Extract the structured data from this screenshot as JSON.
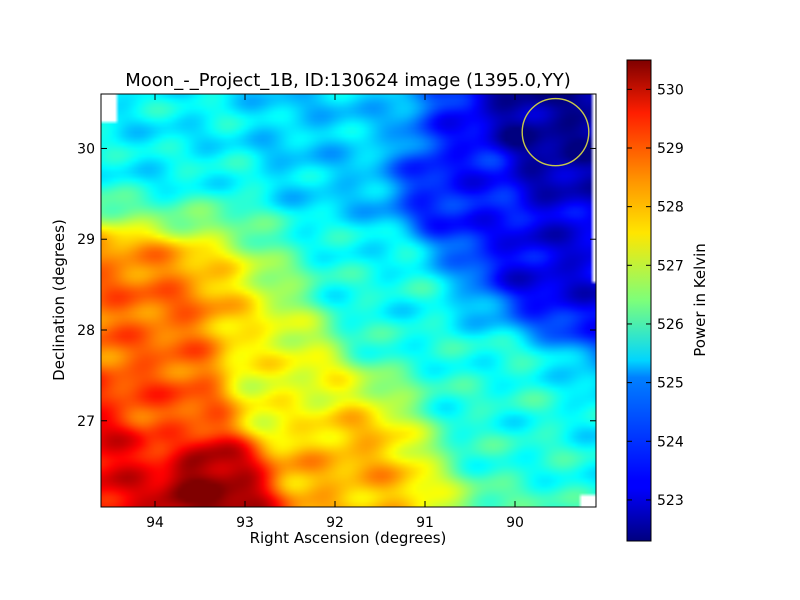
{
  "chart_data": {
    "type": "heatmap",
    "title": "Moon_-_Project_1B, ID:130624 image (1395.0,YY)",
    "xlabel": "Right Ascension (degrees)",
    "ylabel": "Declination (degrees)",
    "xlim": [
      94.6,
      89.1
    ],
    "ylim": [
      26.05,
      30.6
    ],
    "x_ticks": [
      94,
      93,
      92,
      91,
      90
    ],
    "y_ticks": [
      27,
      28,
      29,
      30
    ],
    "x_tick_labels": [
      "94",
      "93",
      "92",
      "91",
      "90"
    ],
    "y_tick_labels": [
      "27",
      "28",
      "29",
      "30"
    ],
    "colorbar": {
      "label": "Power in Kelvin",
      "range": [
        522.3,
        530.5
      ],
      "ticks": [
        523,
        524,
        525,
        526,
        527,
        528,
        529,
        530
      ],
      "tick_labels": [
        "523",
        "524",
        "525",
        "526",
        "527",
        "528",
        "529",
        "530"
      ],
      "colormap": "jet"
    },
    "grid": false,
    "marker": {
      "shape": "circle",
      "color": "#c8c84a",
      "center_ra": 89.55,
      "center_dec": 30.18,
      "radius_ra": 0.37,
      "radius_dec": 0.37
    },
    "field": {
      "min_value": 522.3,
      "max_value": 530.5,
      "description_points": [
        {
          "ra": 93.45,
          "dec": 26.25,
          "value": 530.4
        },
        {
          "ra": 94.3,
          "dec": 26.55,
          "value": 529.6
        },
        {
          "ra": 94.25,
          "dec": 28.1,
          "value": 528.6
        },
        {
          "ra": 93.9,
          "dec": 27.0,
          "value": 528.8
        },
        {
          "ra": 92.6,
          "dec": 27.3,
          "value": 527.3
        },
        {
          "ra": 91.9,
          "dec": 26.4,
          "value": 528.0
        },
        {
          "ra": 91.4,
          "dec": 28.4,
          "value": 525.5
        },
        {
          "ra": 90.2,
          "dec": 27.3,
          "value": 525.6
        },
        {
          "ra": 89.6,
          "dec": 30.2,
          "value": 522.5
        },
        {
          "ra": 89.5,
          "dec": 28.8,
          "value": 523.1
        },
        {
          "ra": 90.5,
          "dec": 29.5,
          "value": 523.5
        },
        {
          "ra": 92.0,
          "dec": 30.2,
          "value": 525.0
        },
        {
          "ra": 94.0,
          "dec": 30.2,
          "value": 525.3
        }
      ]
    }
  }
}
